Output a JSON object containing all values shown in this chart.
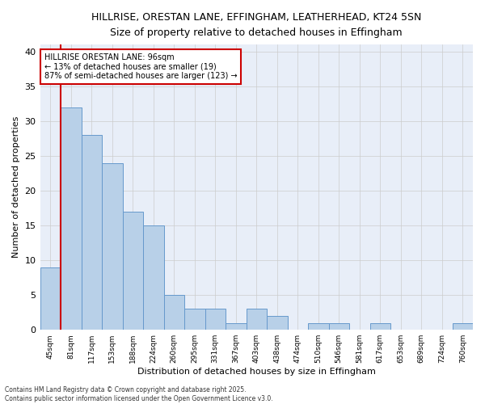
{
  "title_line1": "HILLRISE, ORESTAN LANE, EFFINGHAM, LEATHERHEAD, KT24 5SN",
  "title_line2": "Size of property relative to detached houses in Effingham",
  "xlabel": "Distribution of detached houses by size in Effingham",
  "ylabel": "Number of detached properties",
  "categories": [
    "45sqm",
    "81sqm",
    "117sqm",
    "153sqm",
    "188sqm",
    "224sqm",
    "260sqm",
    "295sqm",
    "331sqm",
    "367sqm",
    "403sqm",
    "438sqm",
    "474sqm",
    "510sqm",
    "546sqm",
    "581sqm",
    "617sqm",
    "653sqm",
    "689sqm",
    "724sqm",
    "760sqm"
  ],
  "values": [
    9,
    32,
    28,
    24,
    17,
    15,
    5,
    3,
    3,
    1,
    3,
    2,
    0,
    1,
    1,
    0,
    1,
    0,
    0,
    0,
    1
  ],
  "bar_color": "#b8d0e8",
  "bar_edge_color": "#6699cc",
  "grid_color": "#cccccc",
  "bg_color": "#e8eef8",
  "fig_bg_color": "#ffffff",
  "vline_color": "#cc0000",
  "vline_x_index": 1,
  "annotation_title": "HILLRISE ORESTAN LANE: 96sqm",
  "annotation_line2": "← 13% of detached houses are smaller (19)",
  "annotation_line3": "87% of semi-detached houses are larger (123) →",
  "annotation_box_edgecolor": "#cc0000",
  "annotation_bg": "#ffffff",
  "ylim": [
    0,
    41
  ],
  "yticks": [
    0,
    5,
    10,
    15,
    20,
    25,
    30,
    35,
    40
  ],
  "footer_line1": "Contains HM Land Registry data © Crown copyright and database right 2025.",
  "footer_line2": "Contains public sector information licensed under the Open Government Licence v3.0."
}
